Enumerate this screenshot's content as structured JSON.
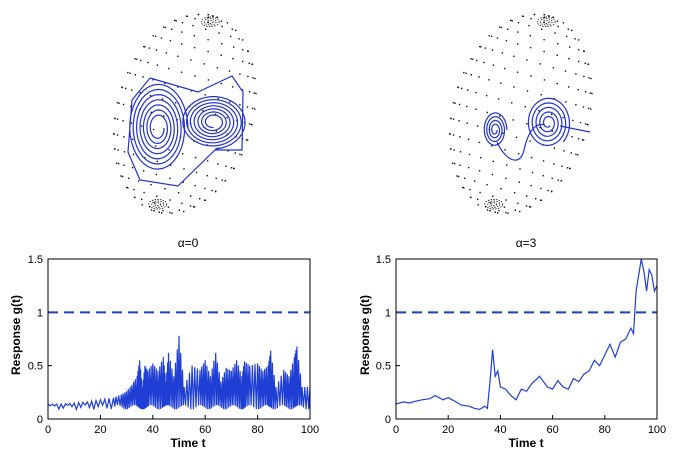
{
  "chart_data": [
    {
      "type": "line",
      "title": "α=0",
      "xlabel": "Time t",
      "ylabel": "Response  g(t)",
      "xlim": [
        0,
        100
      ],
      "ylim": [
        0,
        1.5
      ],
      "xticks": [
        0,
        20,
        40,
        60,
        80,
        100
      ],
      "yticks": [
        0,
        0.5,
        1,
        1.5
      ],
      "threshold": 1,
      "grid": false,
      "series": [
        {
          "x": [
            0,
            5,
            10,
            15,
            20,
            25,
            28,
            30,
            32,
            34,
            35,
            36,
            37,
            38,
            40,
            42,
            44,
            45,
            46,
            48,
            50,
            52,
            55,
            58,
            60,
            62,
            64,
            66,
            68,
            70,
            72,
            74,
            75,
            77,
            80,
            82,
            84,
            85,
            87,
            90,
            92,
            94,
            95,
            97,
            100
          ],
          "y": [
            0.14,
            0.14,
            0.15,
            0.16,
            0.18,
            0.2,
            0.23,
            0.26,
            0.32,
            0.4,
            0.55,
            0.3,
            0.5,
            0.45,
            0.52,
            0.45,
            0.58,
            0.35,
            0.62,
            0.4,
            0.78,
            0.3,
            0.5,
            0.46,
            0.55,
            0.4,
            0.62,
            0.35,
            0.48,
            0.45,
            0.55,
            0.4,
            0.54,
            0.5,
            0.52,
            0.45,
            0.5,
            0.64,
            0.3,
            0.46,
            0.4,
            0.58,
            0.68,
            0.3,
            0.3
          ]
        }
      ]
    },
    {
      "type": "line",
      "title": "α=3",
      "xlabel": "Time t",
      "ylabel": "Response g(t)",
      "xlim": [
        0,
        100
      ],
      "ylim": [
        0,
        1.5
      ],
      "xticks": [
        0,
        20,
        40,
        60,
        80,
        100
      ],
      "yticks": [
        0,
        0.5,
        1,
        1.5
      ],
      "threshold": 1,
      "grid": false,
      "series": [
        {
          "x": [
            0,
            3,
            5,
            8,
            10,
            13,
            15,
            18,
            20,
            23,
            25,
            28,
            30,
            32,
            34,
            35,
            36,
            37,
            38,
            39,
            40,
            42,
            44,
            46,
            48,
            50,
            52,
            55,
            58,
            60,
            62,
            64,
            66,
            68,
            70,
            72,
            74,
            76,
            78,
            80,
            82,
            84,
            86,
            88,
            90,
            91,
            92,
            93,
            94,
            95,
            96,
            97,
            98,
            99,
            100
          ],
          "y": [
            0.14,
            0.16,
            0.15,
            0.17,
            0.18,
            0.19,
            0.22,
            0.18,
            0.2,
            0.16,
            0.13,
            0.12,
            0.1,
            0.09,
            0.12,
            0.1,
            0.35,
            0.65,
            0.4,
            0.45,
            0.3,
            0.28,
            0.22,
            0.18,
            0.28,
            0.26,
            0.33,
            0.4,
            0.3,
            0.28,
            0.36,
            0.3,
            0.28,
            0.38,
            0.35,
            0.42,
            0.45,
            0.55,
            0.5,
            0.6,
            0.7,
            0.58,
            0.72,
            0.75,
            0.85,
            0.8,
            1.2,
            1.35,
            1.5,
            1.38,
            1.2,
            1.4,
            1.35,
            1.2,
            1.25
          ]
        }
      ]
    }
  ]
}
